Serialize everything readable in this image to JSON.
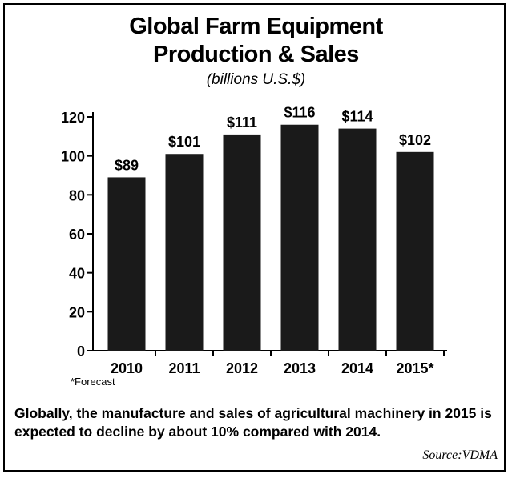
{
  "chart_data": {
    "type": "bar",
    "title": "Global Farm Equipment",
    "title_line2": "Production & Sales",
    "subtitle": "(billions U.S.$)",
    "categories": [
      "2010",
      "2011",
      "2012",
      "2013",
      "2014",
      "2015*"
    ],
    "values": [
      89,
      101,
      111,
      116,
      114,
      102
    ],
    "data_labels": [
      "$89",
      "$101",
      "$111",
      "$116",
      "$114",
      "$102"
    ],
    "yticks": [
      "0",
      "20",
      "40",
      "60",
      "80",
      "100",
      "120"
    ],
    "ylim": [
      0,
      120
    ],
    "bar_color": "#1a1a1a",
    "grid": false
  },
  "footnote": "*Forecast",
  "caption": "Globally, the manufacture and sales of agricultural machinery in 2015 is expected to decline by about 10% compared with 2014.",
  "source": "Source:VDMA"
}
